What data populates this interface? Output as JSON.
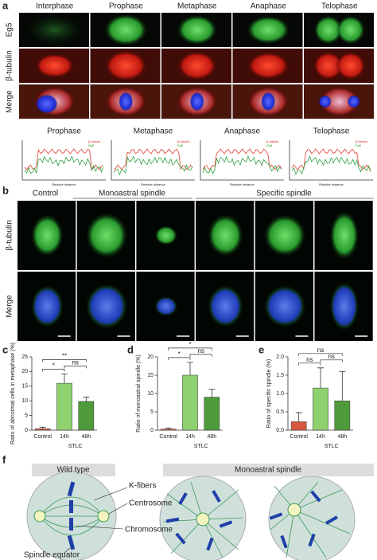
{
  "panel_a": {
    "label": "a",
    "columns": [
      "Interphase",
      "Prophase",
      "Metaphase",
      "Anaphase",
      "Telophase"
    ],
    "rows": [
      "Eg5",
      "β-tubulin",
      "Merge"
    ],
    "profiles": [
      "Prophase",
      "Metaphase",
      "Anaphase",
      "Telophase"
    ],
    "profile_legend": [
      "β-tubulin",
      "Eg5"
    ],
    "profile_xlabel": "Relative distance",
    "profile_ylabel": "Fluorescence intensity"
  },
  "panel_b": {
    "label": "b",
    "columns": [
      "Control",
      "Monoastral spindle",
      "Specific spindle"
    ],
    "rows": [
      "β-tubulin",
      "Merge"
    ]
  },
  "chart_data": [
    {
      "type": "bar",
      "label": "c",
      "ylabel": "Ratio of abnormal cells in metaphase (%)",
      "xlabel": "STLC",
      "categories": [
        "Control",
        "14h",
        "48h"
      ],
      "values": [
        0.5,
        16,
        9.8
      ],
      "errors": [
        0.5,
        3.2,
        1.5
      ],
      "colors": [
        "#d9573f",
        "#8fd06f",
        "#4f9a3b"
      ],
      "ylim": [
        0,
        25
      ],
      "yticks": [
        0,
        5,
        10,
        15,
        20,
        25
      ],
      "significance": [
        {
          "label": "*",
          "groups": [
            "Control",
            "14h"
          ]
        },
        {
          "label": "**",
          "groups": [
            "Control",
            "48h"
          ]
        },
        {
          "label": "ns",
          "groups": [
            "14h",
            "48h"
          ]
        }
      ]
    },
    {
      "type": "bar",
      "label": "d",
      "ylabel": "Ratio of monoastral spindle (%)",
      "xlabel": "STLC",
      "categories": [
        "Control",
        "14h",
        "48h"
      ],
      "values": [
        0.3,
        15,
        9
      ],
      "errors": [
        0.3,
        3.5,
        2.2
      ],
      "colors": [
        "#d9573f",
        "#8fd06f",
        "#4f9a3b"
      ],
      "ylim": [
        0,
        20
      ],
      "yticks": [
        0,
        5,
        10,
        15,
        20
      ],
      "significance": [
        {
          "label": "*",
          "groups": [
            "Control",
            "14h"
          ]
        },
        {
          "label": "*",
          "groups": [
            "Control",
            "48h"
          ]
        },
        {
          "label": "ns",
          "groups": [
            "14h",
            "48h"
          ]
        }
      ]
    },
    {
      "type": "bar",
      "label": "e",
      "ylabel": "Ratio of specific spindle (%)",
      "xlabel": "STLC",
      "categories": [
        "Control",
        "14h",
        "48h"
      ],
      "values": [
        0.23,
        1.15,
        0.8
      ],
      "errors": [
        0.25,
        0.55,
        0.8
      ],
      "colors": [
        "#d9573f",
        "#8fd06f",
        "#4f9a3b"
      ],
      "ylim": [
        0,
        2
      ],
      "yticks": [
        {
          "value": 0,
          "label": "0.0"
        },
        {
          "value": 0.5,
          "label": "0.5"
        },
        {
          "value": 1,
          "label": "1.0"
        },
        {
          "value": 1.5,
          "label": "1.5"
        },
        {
          "value": 2,
          "label": "2.0"
        }
      ],
      "significance": [
        {
          "label": "ns",
          "groups": [
            "Control",
            "14h"
          ]
        },
        {
          "label": "ns",
          "groups": [
            "Control",
            "48h"
          ]
        },
        {
          "label": "ns",
          "groups": [
            "14h",
            "48h"
          ]
        }
      ]
    }
  ],
  "panel_f": {
    "label": "f",
    "headers": [
      "Wild type",
      "Monoastral spindle"
    ],
    "labels": [
      "K-fibers",
      "Centrosome",
      "Chromosome",
      "Spindle equator"
    ]
  }
}
